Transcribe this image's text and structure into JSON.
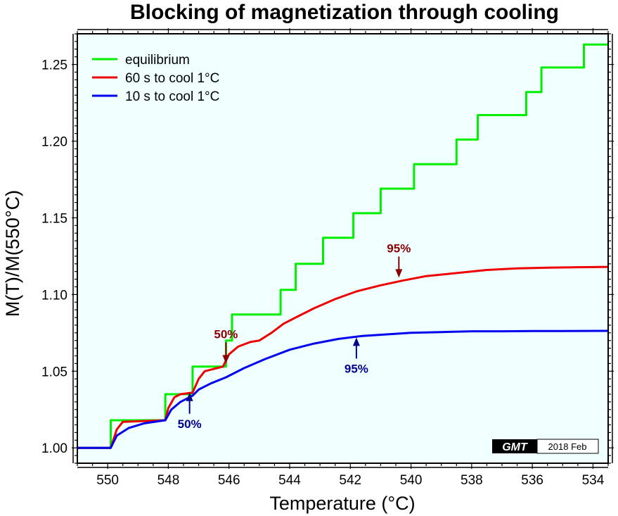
{
  "chart_data": {
    "type": "line",
    "title": "Blocking of magnetization through cooling",
    "xlabel": "Temperature (°C)",
    "ylabel": "M(T)/M(550°C)",
    "xlim": [
      551,
      533.5
    ],
    "ylim": [
      0.99,
      1.27
    ],
    "x_reversed": true,
    "x_ticks": [
      550,
      548,
      546,
      544,
      542,
      540,
      538,
      536,
      534
    ],
    "y_ticks": [
      1.0,
      1.05,
      1.1,
      1.15,
      1.2,
      1.25
    ],
    "y_tick_labels": [
      "1.00",
      "1.05",
      "1.10",
      "1.15",
      "1.20",
      "1.25"
    ],
    "grid": false,
    "legend_position": "top-left",
    "background_color": "#f0ffff",
    "series": [
      {
        "name": "equilibrium",
        "color": "#00ee00",
        "kind": "step",
        "steps": [
          {
            "from": 551.0,
            "to": 549.9,
            "y": 1.0
          },
          {
            "from": 549.9,
            "to": 548.1,
            "y": 1.018
          },
          {
            "from": 548.1,
            "to": 547.8,
            "y": 1.035
          },
          {
            "from": 547.8,
            "to": 547.2,
            "y": 1.035
          },
          {
            "from": 547.2,
            "to": 546.1,
            "y": 1.053
          },
          {
            "from": 546.1,
            "to": 545.9,
            "y": 1.07
          },
          {
            "from": 545.9,
            "to": 544.3,
            "y": 1.087
          },
          {
            "from": 544.3,
            "to": 543.8,
            "y": 1.103
          },
          {
            "from": 543.8,
            "to": 542.9,
            "y": 1.12
          },
          {
            "from": 542.9,
            "to": 541.9,
            "y": 1.137
          },
          {
            "from": 541.9,
            "to": 541.0,
            "y": 1.153
          },
          {
            "from": 541.0,
            "to": 539.9,
            "y": 1.169
          },
          {
            "from": 539.9,
            "to": 538.5,
            "y": 1.185
          },
          {
            "from": 538.5,
            "to": 537.8,
            "y": 1.201
          },
          {
            "from": 537.8,
            "to": 536.2,
            "y": 1.217
          },
          {
            "from": 536.2,
            "to": 535.7,
            "y": 1.232
          },
          {
            "from": 535.7,
            "to": 534.3,
            "y": 1.248
          },
          {
            "from": 534.3,
            "to": 533.5,
            "y": 1.263
          }
        ]
      },
      {
        "name": "60 s to cool 1°C",
        "color": "#ee0000",
        "points": [
          [
            551.0,
            1.0
          ],
          [
            549.9,
            1.0
          ],
          [
            549.7,
            1.012
          ],
          [
            549.5,
            1.017
          ],
          [
            548.1,
            1.018
          ],
          [
            548.0,
            1.026
          ],
          [
            547.8,
            1.033
          ],
          [
            547.6,
            1.035
          ],
          [
            547.2,
            1.036
          ],
          [
            547.0,
            1.045
          ],
          [
            546.8,
            1.05
          ],
          [
            546.2,
            1.053
          ],
          [
            546.0,
            1.061
          ],
          [
            545.7,
            1.066
          ],
          [
            545.3,
            1.069
          ],
          [
            545.0,
            1.07
          ],
          [
            544.6,
            1.075
          ],
          [
            544.2,
            1.081
          ],
          [
            543.8,
            1.085
          ],
          [
            543.2,
            1.091
          ],
          [
            542.5,
            1.097
          ],
          [
            541.8,
            1.102
          ],
          [
            541.0,
            1.106
          ],
          [
            540.3,
            1.109
          ],
          [
            539.5,
            1.112
          ],
          [
            538.5,
            1.114
          ],
          [
            537.5,
            1.116
          ],
          [
            536.5,
            1.117
          ],
          [
            535.5,
            1.1175
          ],
          [
            534.5,
            1.1178
          ],
          [
            533.5,
            1.118
          ]
        ]
      },
      {
        "name": "10 s to cool 1°C",
        "color": "#0000ee",
        "points": [
          [
            551.0,
            1.0
          ],
          [
            549.9,
            1.0
          ],
          [
            549.7,
            1.008
          ],
          [
            549.3,
            1.013
          ],
          [
            548.8,
            1.016
          ],
          [
            548.1,
            1.018
          ],
          [
            547.9,
            1.025
          ],
          [
            547.6,
            1.03
          ],
          [
            547.2,
            1.034
          ],
          [
            547.0,
            1.038
          ],
          [
            546.6,
            1.042
          ],
          [
            546.1,
            1.046
          ],
          [
            545.5,
            1.052
          ],
          [
            544.8,
            1.058
          ],
          [
            544.0,
            1.064
          ],
          [
            543.2,
            1.068
          ],
          [
            542.4,
            1.071
          ],
          [
            541.6,
            1.073
          ],
          [
            540.8,
            1.074
          ],
          [
            540.0,
            1.075
          ],
          [
            539.0,
            1.0755
          ],
          [
            538.0,
            1.076
          ],
          [
            537.0,
            1.076
          ],
          [
            536.0,
            1.0762
          ],
          [
            535.0,
            1.0762
          ],
          [
            533.5,
            1.0763
          ]
        ]
      }
    ],
    "annotations": [
      {
        "text": "50%",
        "series": "60 s to cool 1°C",
        "x": 546.1,
        "y": 1.055,
        "color": "#8b0000",
        "arrow": "down"
      },
      {
        "text": "95%",
        "series": "60 s to cool 1°C",
        "x": 540.4,
        "y": 1.111,
        "color": "#8b0000",
        "arrow": "down"
      },
      {
        "text": "50%",
        "series": "10 s to cool 1°C",
        "x": 547.3,
        "y": 1.036,
        "color": "#00008b",
        "arrow": "up"
      },
      {
        "text": "95%",
        "series": "10 s to cool 1°C",
        "x": 541.8,
        "y": 1.072,
        "color": "#00008b",
        "arrow": "up"
      }
    ]
  },
  "stamp": {
    "logo": "GMT",
    "date": "2018 Feb"
  }
}
